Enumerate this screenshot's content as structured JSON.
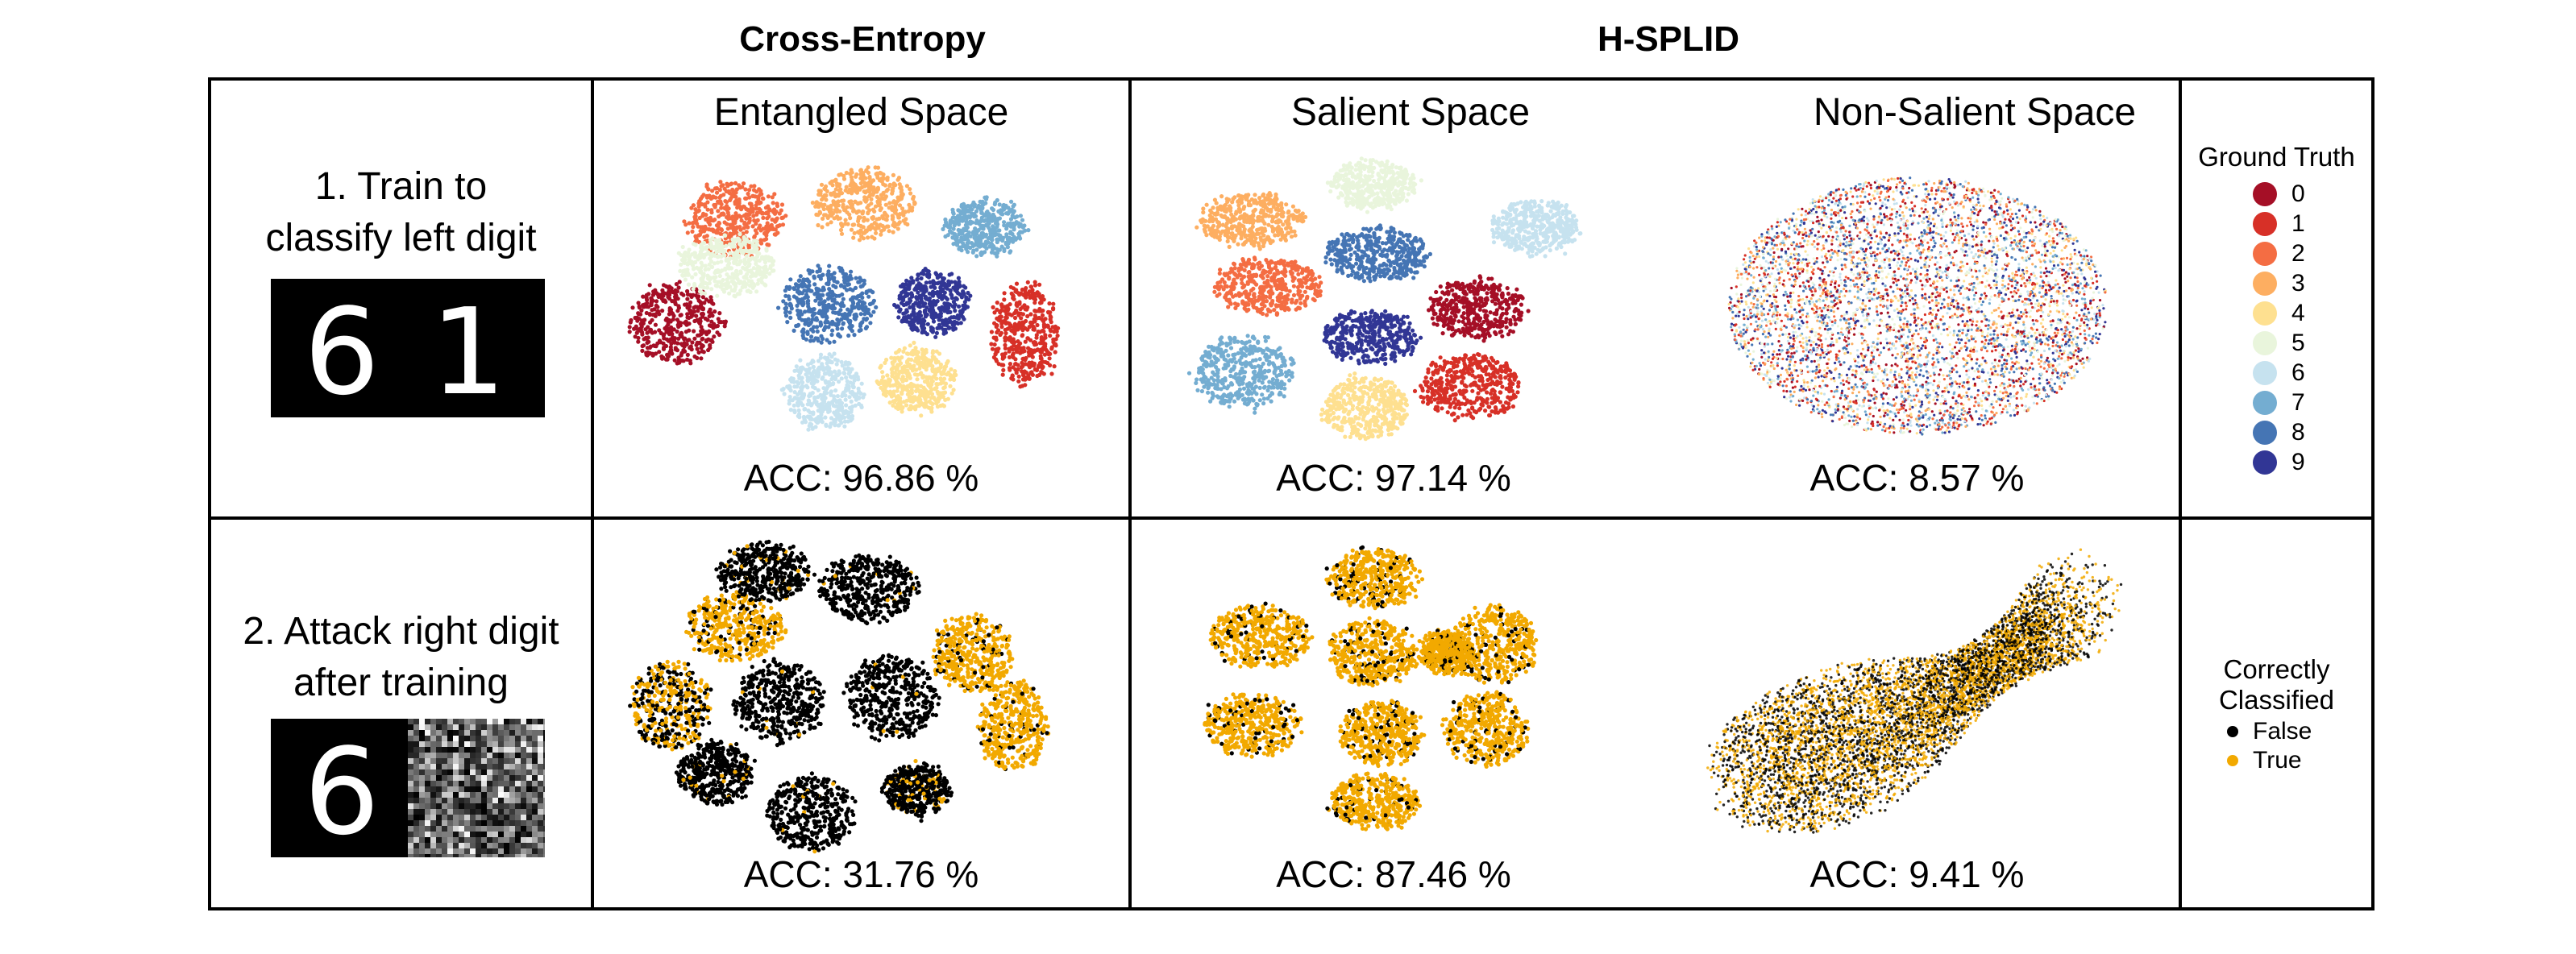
{
  "headers": {
    "left": "Cross-Entropy",
    "right": "H-SPLID"
  },
  "rows": [
    {
      "label_line1": "1. Train to",
      "label_line2": "classify left digit"
    },
    {
      "label_line1": "2. Attack right digit",
      "label_line2": "after training"
    }
  ],
  "panels": {
    "entangled": {
      "title": "Entangled Space"
    },
    "salient": {
      "title": "Salient Space"
    },
    "nonsalient": {
      "title": "Non-Salient Space"
    }
  },
  "accuracy": {
    "row1": {
      "entangled": "ACC: 96.86 %",
      "salient": "ACC: 97.14 %",
      "nonsalient": "ACC: 8.57 %"
    },
    "row2": {
      "entangled": "ACC: 31.76 %",
      "salient": "ACC: 87.46 %",
      "nonsalient": "ACC: 9.41 %"
    }
  },
  "legend_ground_truth": {
    "title": "Ground Truth",
    "items": [
      {
        "label": "0",
        "color": "#a50f26"
      },
      {
        "label": "1",
        "color": "#d73027"
      },
      {
        "label": "2",
        "color": "#f46d43"
      },
      {
        "label": "3",
        "color": "#fdae61"
      },
      {
        "label": "4",
        "color": "#fee090"
      },
      {
        "label": "5",
        "color": "#e9f5dc"
      },
      {
        "label": "6",
        "color": "#c6e2ef"
      },
      {
        "label": "7",
        "color": "#74add1"
      },
      {
        "label": "8",
        "color": "#4575b4"
      },
      {
        "label": "9",
        "color": "#313695"
      }
    ]
  },
  "legend_correct": {
    "title_line1": "Correctly",
    "title_line2": "Classified",
    "items": [
      {
        "label": "False",
        "color": "#000000"
      },
      {
        "label": "True",
        "color": "#f2a900"
      }
    ]
  },
  "digits": {
    "row1_left": "6",
    "row1_right": "1",
    "row2_left": "6"
  }
}
